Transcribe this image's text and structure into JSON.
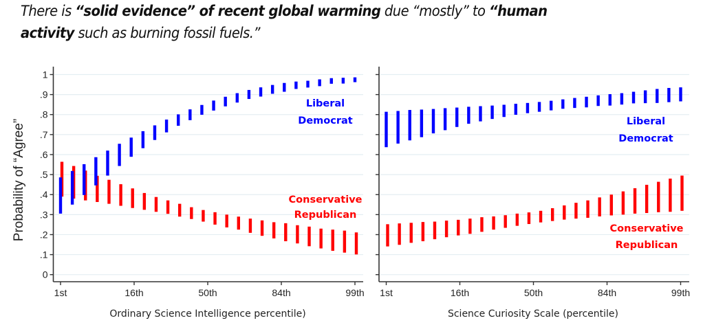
{
  "title": {
    "line1": [
      {
        "text": "There is ",
        "bold": false
      },
      {
        "text": "“solid evidence” of recent global warming",
        "bold": true
      },
      {
        "text": " due “mostly” to ",
        "bold": false
      },
      {
        "text": "“human",
        "bold": true
      }
    ],
    "line2": [
      {
        "text": "activity",
        "bold": true
      },
      {
        "text": " such as burning fossil fuels.”",
        "bold": false
      }
    ]
  },
  "colors": {
    "liberal_democrat": "#0000ff",
    "conservative_republican": "#ff0000",
    "gridline": "#e4eef2",
    "axis": "#333333"
  },
  "chart_data": [
    {
      "type": "bar",
      "subtype": "range-bars (confidence intervals)",
      "title": "There is “solid evidence” of recent global warming due “mostly” to “human activity such as burning fossil fuels.”",
      "xlabel": "Ordinary Science Intelligence percentile)",
      "ylabel": "Probability of “Agree”",
      "ylim": [
        0,
        1
      ],
      "xlim": [
        -2,
        2
      ],
      "yticks": [
        0,
        0.1,
        0.2,
        0.3,
        0.4,
        0.5,
        0.6,
        0.7,
        0.8,
        0.9,
        1
      ],
      "ytick_labels": [
        "0",
        ".1",
        ".2",
        ".3",
        ".4",
        ".5",
        ".6",
        ".7",
        ".8",
        ".9",
        "1"
      ],
      "xticks": [
        -2,
        -1,
        0,
        1,
        2
      ],
      "xtick_labels": [
        "1st",
        "16th",
        "50th",
        "84th",
        "99th"
      ],
      "grid": true,
      "x": [
        -2.0,
        -1.84,
        -1.68,
        -1.52,
        -1.36,
        -1.2,
        -1.04,
        -0.88,
        -0.72,
        -0.56,
        -0.4,
        -0.24,
        -0.08,
        0.08,
        0.24,
        0.4,
        0.56,
        0.72,
        0.88,
        1.04,
        1.2,
        1.36,
        1.52,
        1.68,
        1.84,
        2.0
      ],
      "series": [
        {
          "name": "Liberal Democrat",
          "label_lines": [
            "Liberal",
            "Democrat"
          ],
          "label_position": "top-right",
          "low": [
            0.305,
            0.35,
            0.398,
            0.446,
            0.495,
            0.543,
            0.589,
            0.632,
            0.673,
            0.711,
            0.744,
            0.772,
            0.799,
            0.82,
            0.841,
            0.86,
            0.878,
            0.89,
            0.904,
            0.914,
            0.928,
            0.935,
            0.942,
            0.954,
            0.955,
            0.962
          ],
          "high": [
            0.486,
            0.518,
            0.552,
            0.587,
            0.62,
            0.654,
            0.685,
            0.717,
            0.746,
            0.775,
            0.801,
            0.826,
            0.848,
            0.87,
            0.889,
            0.907,
            0.923,
            0.936,
            0.948,
            0.958,
            0.965,
            0.969,
            0.976,
            0.982,
            0.984,
            0.986
          ]
        },
        {
          "name": "Conservative Republican",
          "label_lines": [
            "Conservative",
            "Republican"
          ],
          "label_position": "middle-right",
          "low": [
            0.39,
            0.38,
            0.371,
            0.363,
            0.354,
            0.344,
            0.333,
            0.324,
            0.314,
            0.304,
            0.29,
            0.278,
            0.265,
            0.25,
            0.236,
            0.225,
            0.209,
            0.194,
            0.181,
            0.167,
            0.156,
            0.142,
            0.131,
            0.119,
            0.11,
            0.101
          ],
          "high": [
            0.564,
            0.543,
            0.52,
            0.494,
            0.474,
            0.452,
            0.431,
            0.408,
            0.388,
            0.371,
            0.354,
            0.337,
            0.323,
            0.312,
            0.3,
            0.29,
            0.28,
            0.271,
            0.262,
            0.257,
            0.247,
            0.24,
            0.23,
            0.225,
            0.22,
            0.211
          ]
        }
      ]
    },
    {
      "type": "bar",
      "subtype": "range-bars (confidence intervals)",
      "xlabel": "Science Curiosity Scale (percentile)",
      "ylabel": "",
      "ylim": [
        0,
        1
      ],
      "xlim": [
        -2,
        2
      ],
      "yticks": [
        0,
        0.1,
        0.2,
        0.3,
        0.4,
        0.5,
        0.6,
        0.7,
        0.8,
        0.9,
        1
      ],
      "xticks": [
        -2,
        -1,
        0,
        1,
        2
      ],
      "xtick_labels": [
        "1st",
        "16th",
        "50th",
        "84th",
        "99th"
      ],
      "grid": true,
      "x": [
        -2.0,
        -1.84,
        -1.68,
        -1.52,
        -1.36,
        -1.2,
        -1.04,
        -0.88,
        -0.72,
        -0.56,
        -0.4,
        -0.24,
        -0.08,
        0.08,
        0.24,
        0.4,
        0.56,
        0.72,
        0.88,
        1.04,
        1.2,
        1.36,
        1.52,
        1.68,
        1.84,
        2.0
      ],
      "series": [
        {
          "name": "Liberal Democrat",
          "label_lines": [
            "Liberal",
            "Democrat"
          ],
          "label_position": "upper-right",
          "low": [
            0.637,
            0.655,
            0.671,
            0.687,
            0.706,
            0.722,
            0.738,
            0.754,
            0.766,
            0.778,
            0.788,
            0.799,
            0.807,
            0.814,
            0.821,
            0.829,
            0.833,
            0.836,
            0.843,
            0.845,
            0.85,
            0.856,
            0.857,
            0.858,
            0.862,
            0.866
          ],
          "high": [
            0.814,
            0.818,
            0.823,
            0.825,
            0.828,
            0.832,
            0.835,
            0.839,
            0.842,
            0.845,
            0.849,
            0.854,
            0.858,
            0.863,
            0.869,
            0.876,
            0.883,
            0.889,
            0.896,
            0.902,
            0.907,
            0.914,
            0.921,
            0.928,
            0.933,
            0.936
          ]
        },
        {
          "name": "Conservative Republican",
          "label_lines": [
            "Conservative",
            "Republican"
          ],
          "label_position": "lower-right",
          "low": [
            0.141,
            0.149,
            0.159,
            0.167,
            0.177,
            0.187,
            0.196,
            0.204,
            0.214,
            0.225,
            0.234,
            0.244,
            0.253,
            0.261,
            0.268,
            0.275,
            0.28,
            0.284,
            0.291,
            0.296,
            0.3,
            0.305,
            0.308,
            0.312,
            0.314,
            0.319
          ],
          "high": [
            0.252,
            0.256,
            0.259,
            0.263,
            0.265,
            0.27,
            0.274,
            0.28,
            0.287,
            0.291,
            0.297,
            0.305,
            0.311,
            0.319,
            0.332,
            0.346,
            0.359,
            0.371,
            0.386,
            0.4,
            0.416,
            0.432,
            0.449,
            0.464,
            0.48,
            0.495
          ]
        }
      ]
    }
  ]
}
